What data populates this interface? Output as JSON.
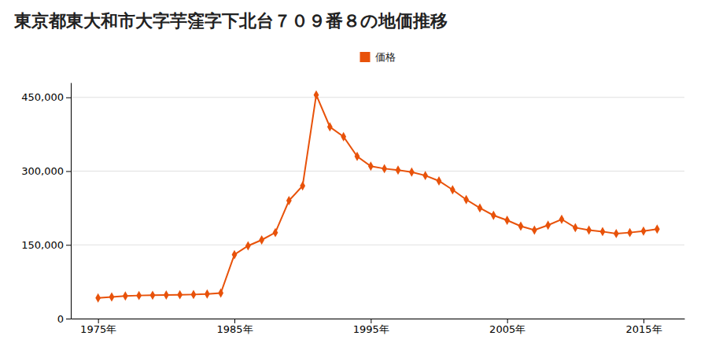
{
  "chart_data": {
    "type": "line",
    "title": "東京都東大和市大字芋窪字下北台７０９番８の地価推移",
    "x": [
      1975,
      1976,
      1977,
      1978,
      1979,
      1980,
      1981,
      1982,
      1983,
      1984,
      1985,
      1986,
      1987,
      1988,
      1989,
      1990,
      1991,
      1992,
      1993,
      1994,
      1995,
      1996,
      1997,
      1998,
      1999,
      2000,
      2001,
      2002,
      2003,
      2004,
      2005,
      2006,
      2007,
      2008,
      2009,
      2010,
      2011,
      2012,
      2013,
      2014,
      2015,
      2016
    ],
    "series": [
      {
        "name": "価格",
        "color": "#e8520a",
        "marker": "diamond",
        "values": [
          42000,
          44000,
          46000,
          47000,
          47500,
          48000,
          48500,
          49000,
          50000,
          52000,
          130000,
          148000,
          160000,
          175000,
          240000,
          270000,
          455000,
          390000,
          370000,
          330000,
          310000,
          305000,
          302000,
          298000,
          291000,
          280000,
          262000,
          242000,
          225000,
          210000,
          200000,
          188000,
          180000,
          190000,
          202000,
          185000,
          180000,
          177000,
          173000,
          175000,
          178000,
          182000
        ]
      }
    ],
    "xlim": [
      1973,
      2018
    ],
    "xticks": [
      {
        "value": 1975,
        "label": "1975年"
      },
      {
        "value": 1985,
        "label": "1985年"
      },
      {
        "value": 1995,
        "label": "1995年"
      },
      {
        "value": 2005,
        "label": "2005年"
      },
      {
        "value": 2015,
        "label": "2015年"
      }
    ],
    "ylim": [
      0,
      480000
    ],
    "yticks": [
      0,
      {
        "value": 150000,
        "label": "150,000"
      },
      {
        "value": 300000,
        "label": "300,000"
      },
      {
        "value": 450000,
        "label": "450,000"
      }
    ],
    "grid": true,
    "legend": "top"
  }
}
